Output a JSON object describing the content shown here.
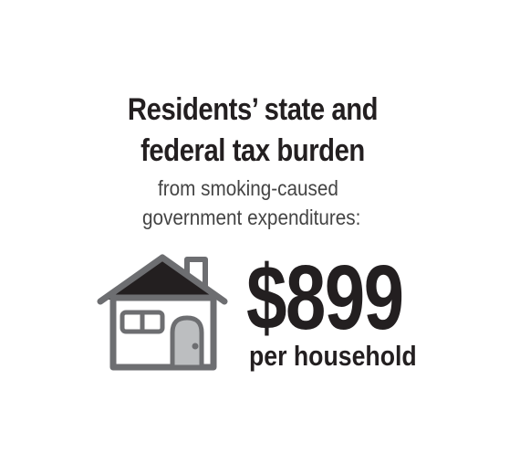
{
  "headline": {
    "line1": "Residents’ state and",
    "line2": "federal tax burden"
  },
  "subheadline": {
    "line1": "from smoking-caused",
    "line2": "government expenditures:"
  },
  "stat": {
    "amount": "$899",
    "unit": "per household"
  },
  "icon": "house-icon",
  "colors": {
    "text": "#231f20",
    "subtext": "#444444",
    "house_outline": "#6d6e71",
    "roof": "#231f20",
    "door": "#bcbec0"
  }
}
